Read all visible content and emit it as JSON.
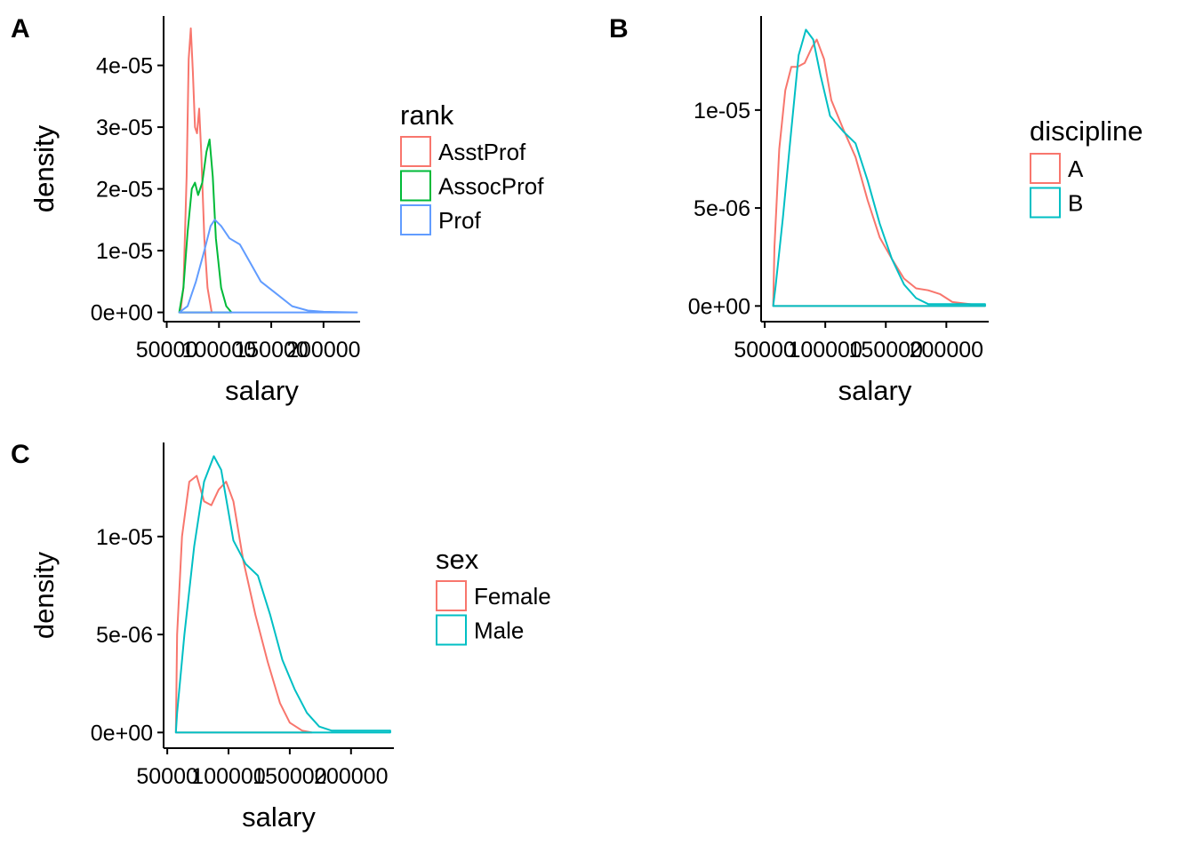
{
  "colors": {
    "red": "#F8766D",
    "green": "#00BA38",
    "blue": "#619CFF",
    "teal": "#00BFC4"
  },
  "chart_data": [
    {
      "letter": "A",
      "type": "area",
      "xlabel": "salary",
      "ylabel": "density",
      "x_ticks": [
        50000,
        100000,
        150000,
        200000
      ],
      "x_tick_labels": [
        "50000",
        "100000",
        "150000",
        "200000"
      ],
      "y_ticks": [
        0,
        1e-05,
        2e-05,
        3e-05,
        4e-05
      ],
      "y_tick_labels": [
        "0e+00",
        "1e-05",
        "2e-05",
        "3e-05",
        "4e-05"
      ],
      "xlim": [
        47000,
        235000
      ],
      "ylim": [
        -1.5e-06,
        4.8e-05
      ],
      "legend": {
        "title": "rank",
        "placement": "right"
      },
      "series": [
        {
          "name": "AsstProf",
          "color": "#F8766D",
          "points": [
            [
              63000,
              0
            ],
            [
              66000,
              4e-06
            ],
            [
              69000,
              2.2e-05
            ],
            [
              71000,
              4.1e-05
            ],
            [
              73000,
              4.6e-05
            ],
            [
              75000,
              3.9e-05
            ],
            [
              77000,
              3e-05
            ],
            [
              79000,
              2.9e-05
            ],
            [
              81000,
              3.3e-05
            ],
            [
              83000,
              2.6e-05
            ],
            [
              86000,
              1.2e-05
            ],
            [
              89000,
              4e-06
            ],
            [
              93000,
              0
            ]
          ]
        },
        {
          "name": "AssocProf",
          "color": "#00BA38",
          "points": [
            [
              62000,
              0
            ],
            [
              66000,
              4e-06
            ],
            [
              70000,
              1.3e-05
            ],
            [
              74000,
              2e-05
            ],
            [
              77000,
              2.1e-05
            ],
            [
              80000,
              1.9e-05
            ],
            [
              84000,
              2.1e-05
            ],
            [
              88000,
              2.6e-05
            ],
            [
              91000,
              2.8e-05
            ],
            [
              94000,
              2.2e-05
            ],
            [
              97000,
              1.2e-05
            ],
            [
              102000,
              4e-06
            ],
            [
              107000,
              1e-06
            ],
            [
              112000,
              0
            ]
          ]
        },
        {
          "name": "Prof",
          "color": "#619CFF",
          "points": [
            [
              62000,
              0
            ],
            [
              70000,
              1e-06
            ],
            [
              78000,
              5e-06
            ],
            [
              86000,
              1e-05
            ],
            [
              92000,
              1.4e-05
            ],
            [
              96000,
              1.5e-05
            ],
            [
              102000,
              1.4e-05
            ],
            [
              110000,
              1.2e-05
            ],
            [
              120000,
              1.1e-05
            ],
            [
              130000,
              8e-06
            ],
            [
              140000,
              5e-06
            ],
            [
              155000,
              3e-06
            ],
            [
              170000,
              1e-06
            ],
            [
              185000,
              3e-07
            ],
            [
              200000,
              1e-07
            ],
            [
              232000,
              0
            ]
          ]
        }
      ]
    },
    {
      "letter": "B",
      "type": "area",
      "xlabel": "salary",
      "ylabel": "density",
      "x_ticks": [
        50000,
        100000,
        150000,
        200000
      ],
      "x_tick_labels": [
        "50000",
        "100000",
        "150000",
        "200000"
      ],
      "y_ticks": [
        0,
        5e-06,
        1e-05
      ],
      "y_tick_labels": [
        "0e+00",
        "5e-06",
        "1e-05"
      ],
      "xlim": [
        47000,
        235000
      ],
      "ylim": [
        -8e-07,
        1.48e-05
      ],
      "legend": {
        "title": "discipline",
        "placement": "right"
      },
      "series": [
        {
          "name": "A",
          "color": "#F8766D",
          "points": [
            [
              57000,
              0
            ],
            [
              58000,
              3e-06
            ],
            [
              62000,
              8e-06
            ],
            [
              67000,
              1.1e-05
            ],
            [
              72000,
              1.22e-05
            ],
            [
              77000,
              1.22e-05
            ],
            [
              83000,
              1.24e-05
            ],
            [
              89000,
              1.32e-05
            ],
            [
              93000,
              1.36e-05
            ],
            [
              99000,
              1.26e-05
            ],
            [
              105000,
              1.05e-05
            ],
            [
              115000,
              9e-06
            ],
            [
              125000,
              7.6e-06
            ],
            [
              135000,
              5.4e-06
            ],
            [
              145000,
              3.5e-06
            ],
            [
              155000,
              2.4e-06
            ],
            [
              165000,
              1.4e-06
            ],
            [
              175000,
              9e-07
            ],
            [
              185000,
              8e-07
            ],
            [
              195000,
              6e-07
            ],
            [
              205000,
              2e-07
            ],
            [
              232000,
              0
            ]
          ]
        },
        {
          "name": "B",
          "color": "#00BFC4",
          "points": [
            [
              57000,
              0
            ],
            [
              59000,
              1e-06
            ],
            [
              65000,
              4.5e-06
            ],
            [
              72000,
              9e-06
            ],
            [
              78000,
              1.28e-05
            ],
            [
              84000,
              1.41e-05
            ],
            [
              90000,
              1.36e-05
            ],
            [
              96000,
              1.18e-05
            ],
            [
              104000,
              9.7e-06
            ],
            [
              115000,
              8.9e-06
            ],
            [
              125000,
              8.3e-06
            ],
            [
              135000,
              6.4e-06
            ],
            [
              145000,
              4.2e-06
            ],
            [
              155000,
              2.4e-06
            ],
            [
              165000,
              1.1e-06
            ],
            [
              175000,
              4e-07
            ],
            [
              185000,
              1e-07
            ],
            [
              200000,
              1e-07
            ],
            [
              232000,
              1e-07
            ],
            [
              232000,
              0
            ]
          ]
        }
      ]
    },
    {
      "letter": "C",
      "type": "area",
      "xlabel": "salary",
      "ylabel": "density",
      "x_ticks": [
        50000,
        100000,
        150000,
        200000
      ],
      "x_tick_labels": [
        "50000",
        "100000",
        "150000",
        "200000"
      ],
      "y_ticks": [
        0,
        5e-06,
        1e-05
      ],
      "y_tick_labels": [
        "0e+00",
        "5e-06",
        "1e-05"
      ],
      "xlim": [
        47000,
        235000
      ],
      "ylim": [
        -8e-07,
        1.48e-05
      ],
      "legend": {
        "title": "sex",
        "placement": "right"
      },
      "series": [
        {
          "name": "Female",
          "color": "#F8766D",
          "points": [
            [
              57000,
              0
            ],
            [
              58000,
              5e-06
            ],
            [
              62000,
              1e-05
            ],
            [
              68000,
              1.28e-05
            ],
            [
              74000,
              1.31e-05
            ],
            [
              80000,
              1.18e-05
            ],
            [
              86000,
              1.16e-05
            ],
            [
              92000,
              1.24e-05
            ],
            [
              98000,
              1.28e-05
            ],
            [
              104000,
              1.18e-05
            ],
            [
              112000,
              8.8e-06
            ],
            [
              122000,
              6e-06
            ],
            [
              132000,
              3.6e-06
            ],
            [
              142000,
              1.5e-06
            ],
            [
              150000,
              5e-07
            ],
            [
              160000,
              1e-07
            ],
            [
              168000,
              0
            ]
          ]
        },
        {
          "name": "Male",
          "color": "#00BFC4",
          "points": [
            [
              57000,
              0
            ],
            [
              58000,
              1e-06
            ],
            [
              64000,
              5e-06
            ],
            [
              72000,
              9.5e-06
            ],
            [
              80000,
              1.28e-05
            ],
            [
              88000,
              1.41e-05
            ],
            [
              94000,
              1.34e-05
            ],
            [
              104000,
              9.8e-06
            ],
            [
              114000,
              8.6e-06
            ],
            [
              124000,
              8e-06
            ],
            [
              134000,
              6e-06
            ],
            [
              144000,
              3.7e-06
            ],
            [
              154000,
              2.2e-06
            ],
            [
              164000,
              1e-06
            ],
            [
              174000,
              3e-07
            ],
            [
              184000,
              1e-07
            ],
            [
              232000,
              1e-07
            ],
            [
              232000,
              0
            ]
          ]
        }
      ]
    }
  ]
}
